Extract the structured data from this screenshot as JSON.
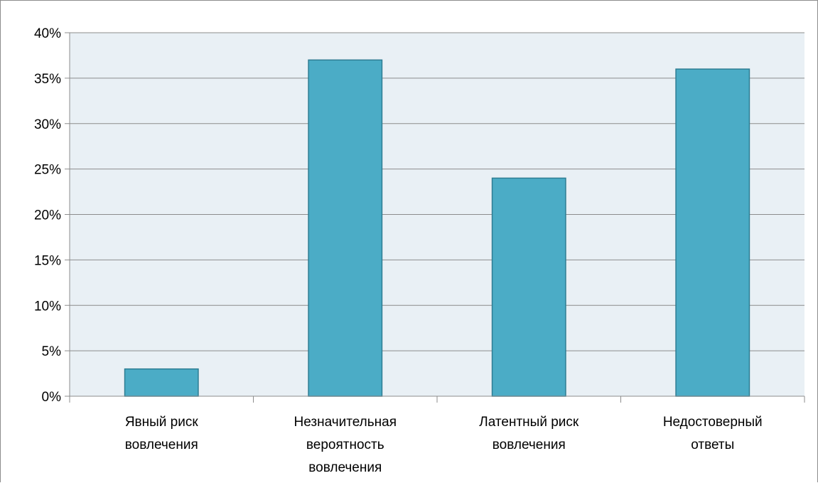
{
  "chart_data": {
    "type": "bar",
    "categories": [
      [
        "Явный риск",
        "вовлечения"
      ],
      [
        "Незначительная",
        "вероятность",
        "вовлечения"
      ],
      [
        "Латентный риск",
        "вовлечения"
      ],
      [
        "Недостоверный",
        "ответы"
      ]
    ],
    "values": [
      3,
      37,
      24,
      36
    ],
    "yticks": [
      "0%",
      "5%",
      "10%",
      "15%",
      "20%",
      "25%",
      "30%",
      "35%",
      "40%"
    ],
    "ylim": [
      0,
      40
    ],
    "grid": true,
    "legend": "none",
    "colors": {
      "bar_fill": "#4bacc6",
      "bar_stroke": "#2e7d93",
      "plot_bg": "#e9f0f5",
      "grid": "#8c8c8c",
      "axis": "#8c8c8c"
    }
  }
}
